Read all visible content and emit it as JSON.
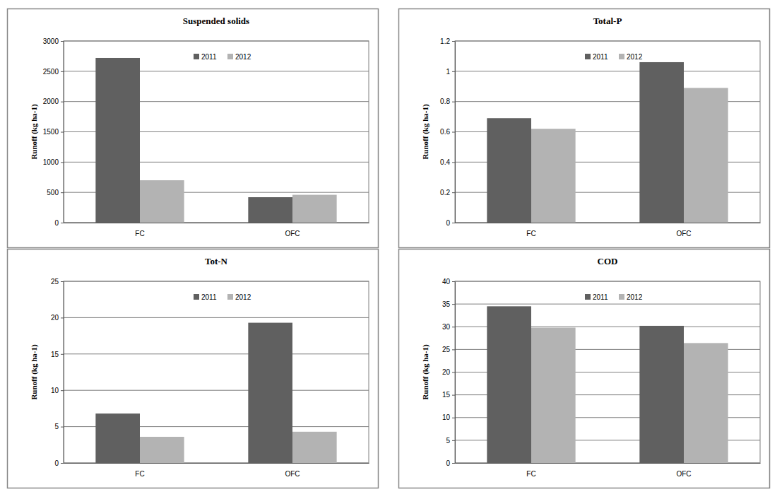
{
  "chart_data": [
    {
      "type": "bar",
      "title": "Suspended solids",
      "y_label": "Runoff (kg ha-1)",
      "categories": [
        "FC",
        "OFC"
      ],
      "series": [
        {
          "name": "2011",
          "color": "#606060",
          "values": [
            2720,
            420
          ]
        },
        {
          "name": "2012",
          "color": "#b3b3b3",
          "values": [
            700,
            460
          ]
        }
      ],
      "ylim": [
        0,
        3000
      ],
      "yticks": [
        0,
        500,
        1000,
        1500,
        2000,
        2500,
        3000
      ],
      "grid": true,
      "legend": "top"
    },
    {
      "type": "bar",
      "title": "Total-P",
      "y_label": "Runoff (kg ha-1)",
      "categories": [
        "FC",
        "OFC"
      ],
      "series": [
        {
          "name": "2011",
          "color": "#606060",
          "values": [
            0.69,
            1.06
          ]
        },
        {
          "name": "2012",
          "color": "#b3b3b3",
          "values": [
            0.62,
            0.89
          ]
        }
      ],
      "ylim": [
        0,
        1.2
      ],
      "yticks": [
        0,
        0.2,
        0.4,
        0.6,
        0.8,
        1,
        1.2
      ],
      "grid": true,
      "legend": "top"
    },
    {
      "type": "bar",
      "title": "Tot-N",
      "y_label": "Runoff (kg ha-1)",
      "categories": [
        "FC",
        "OFC"
      ],
      "series": [
        {
          "name": "2011",
          "color": "#606060",
          "values": [
            6.8,
            19.3
          ]
        },
        {
          "name": "2012",
          "color": "#b3b3b3",
          "values": [
            3.6,
            4.3
          ]
        }
      ],
      "ylim": [
        0,
        25
      ],
      "yticks": [
        0,
        5,
        10,
        15,
        20,
        25
      ],
      "grid": true,
      "legend": "top"
    },
    {
      "type": "bar",
      "title": "COD",
      "y_label": "Runoff (kg ha-1)",
      "categories": [
        "FC",
        "OFC"
      ],
      "series": [
        {
          "name": "2011",
          "color": "#606060",
          "values": [
            34.5,
            30.2
          ]
        },
        {
          "name": "2012",
          "color": "#b3b3b3",
          "values": [
            29.8,
            26.4
          ]
        }
      ],
      "ylim": [
        0,
        40
      ],
      "yticks": [
        0,
        5,
        10,
        15,
        20,
        25,
        30,
        35,
        40
      ],
      "grid": true,
      "legend": "top"
    }
  ]
}
